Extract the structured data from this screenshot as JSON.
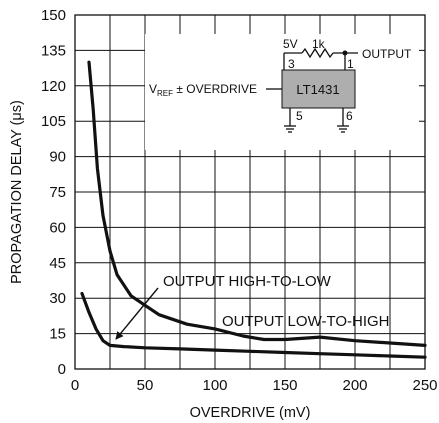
{
  "chart_data": {
    "type": "line",
    "title": "",
    "xlabel": "OVERDRIVE (mV)",
    "ylabel": "PROPAGATION DELAY (μs)",
    "xlim": [
      0,
      250
    ],
    "ylim": [
      0,
      150
    ],
    "x_ticks": [
      "0",
      "50",
      "100",
      "150",
      "200",
      "250"
    ],
    "y_ticks": [
      "0",
      "15",
      "30",
      "45",
      "60",
      "75",
      "90",
      "105",
      "120",
      "135",
      "150"
    ],
    "grid": true,
    "series": [
      {
        "name": "OUTPUT HIGH-TO-LOW",
        "x": [
          10,
          13,
          16,
          20,
          25,
          30,
          40,
          50,
          60,
          80,
          100,
          120,
          135,
          150,
          175,
          200,
          225,
          250
        ],
        "y": [
          130,
          110,
          85,
          65,
          50,
          40,
          31,
          27,
          23,
          19,
          17,
          14,
          12.5,
          12.5,
          13.5,
          12,
          11,
          10
        ]
      },
      {
        "name": "OUTPUT LOW-TO-HIGH",
        "x": [
          5,
          10,
          15,
          20,
          25,
          35,
          50,
          75,
          100,
          125,
          150,
          175,
          200,
          225,
          250
        ],
        "y": [
          32,
          24,
          17,
          12,
          10,
          9.5,
          9,
          8.5,
          8,
          7.5,
          7,
          6.5,
          6,
          5.5,
          5
        ]
      }
    ],
    "annotations": {
      "high_to_low": "OUTPUT HIGH-TO-LOW",
      "low_to_high": "OUTPUT LOW-TO-HIGH"
    },
    "inset_circuit": {
      "supply": "5V",
      "resistor": "1k",
      "output": "OUTPUT",
      "input_main": "V",
      "input_sub": "REF",
      "input_rest": " ± OVERDRIVE",
      "ic": "LT1431",
      "pins": [
        "3",
        "1",
        "5",
        "6"
      ]
    }
  }
}
